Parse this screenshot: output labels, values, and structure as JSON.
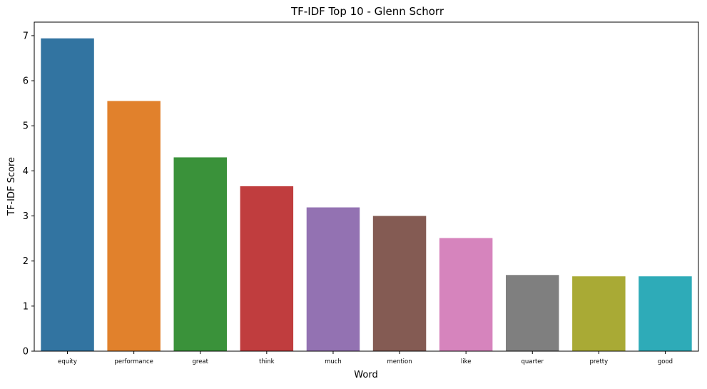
{
  "chart_data": {
    "type": "bar",
    "title": "TF-IDF Top 10 - Glenn Schorr",
    "xlabel": "Word",
    "ylabel": "TF-IDF Score",
    "categories": [
      "equity",
      "performance",
      "great",
      "think",
      "much",
      "mention",
      "like",
      "quarter",
      "pretty",
      "good"
    ],
    "values": [
      6.94,
      5.55,
      4.3,
      3.66,
      3.19,
      3.0,
      2.51,
      1.69,
      1.66,
      1.66
    ],
    "colors": [
      "#3274a1",
      "#e1812c",
      "#3a923a",
      "#c03d3e",
      "#9372b2",
      "#845b53",
      "#d684bd",
      "#7f7f7f",
      "#a9aa35",
      "#2eabb8"
    ],
    "ylim": [
      0,
      7.3
    ],
    "yticks": [
      0,
      1,
      2,
      3,
      4,
      5,
      6,
      7
    ],
    "grid": false,
    "legend": "none"
  }
}
